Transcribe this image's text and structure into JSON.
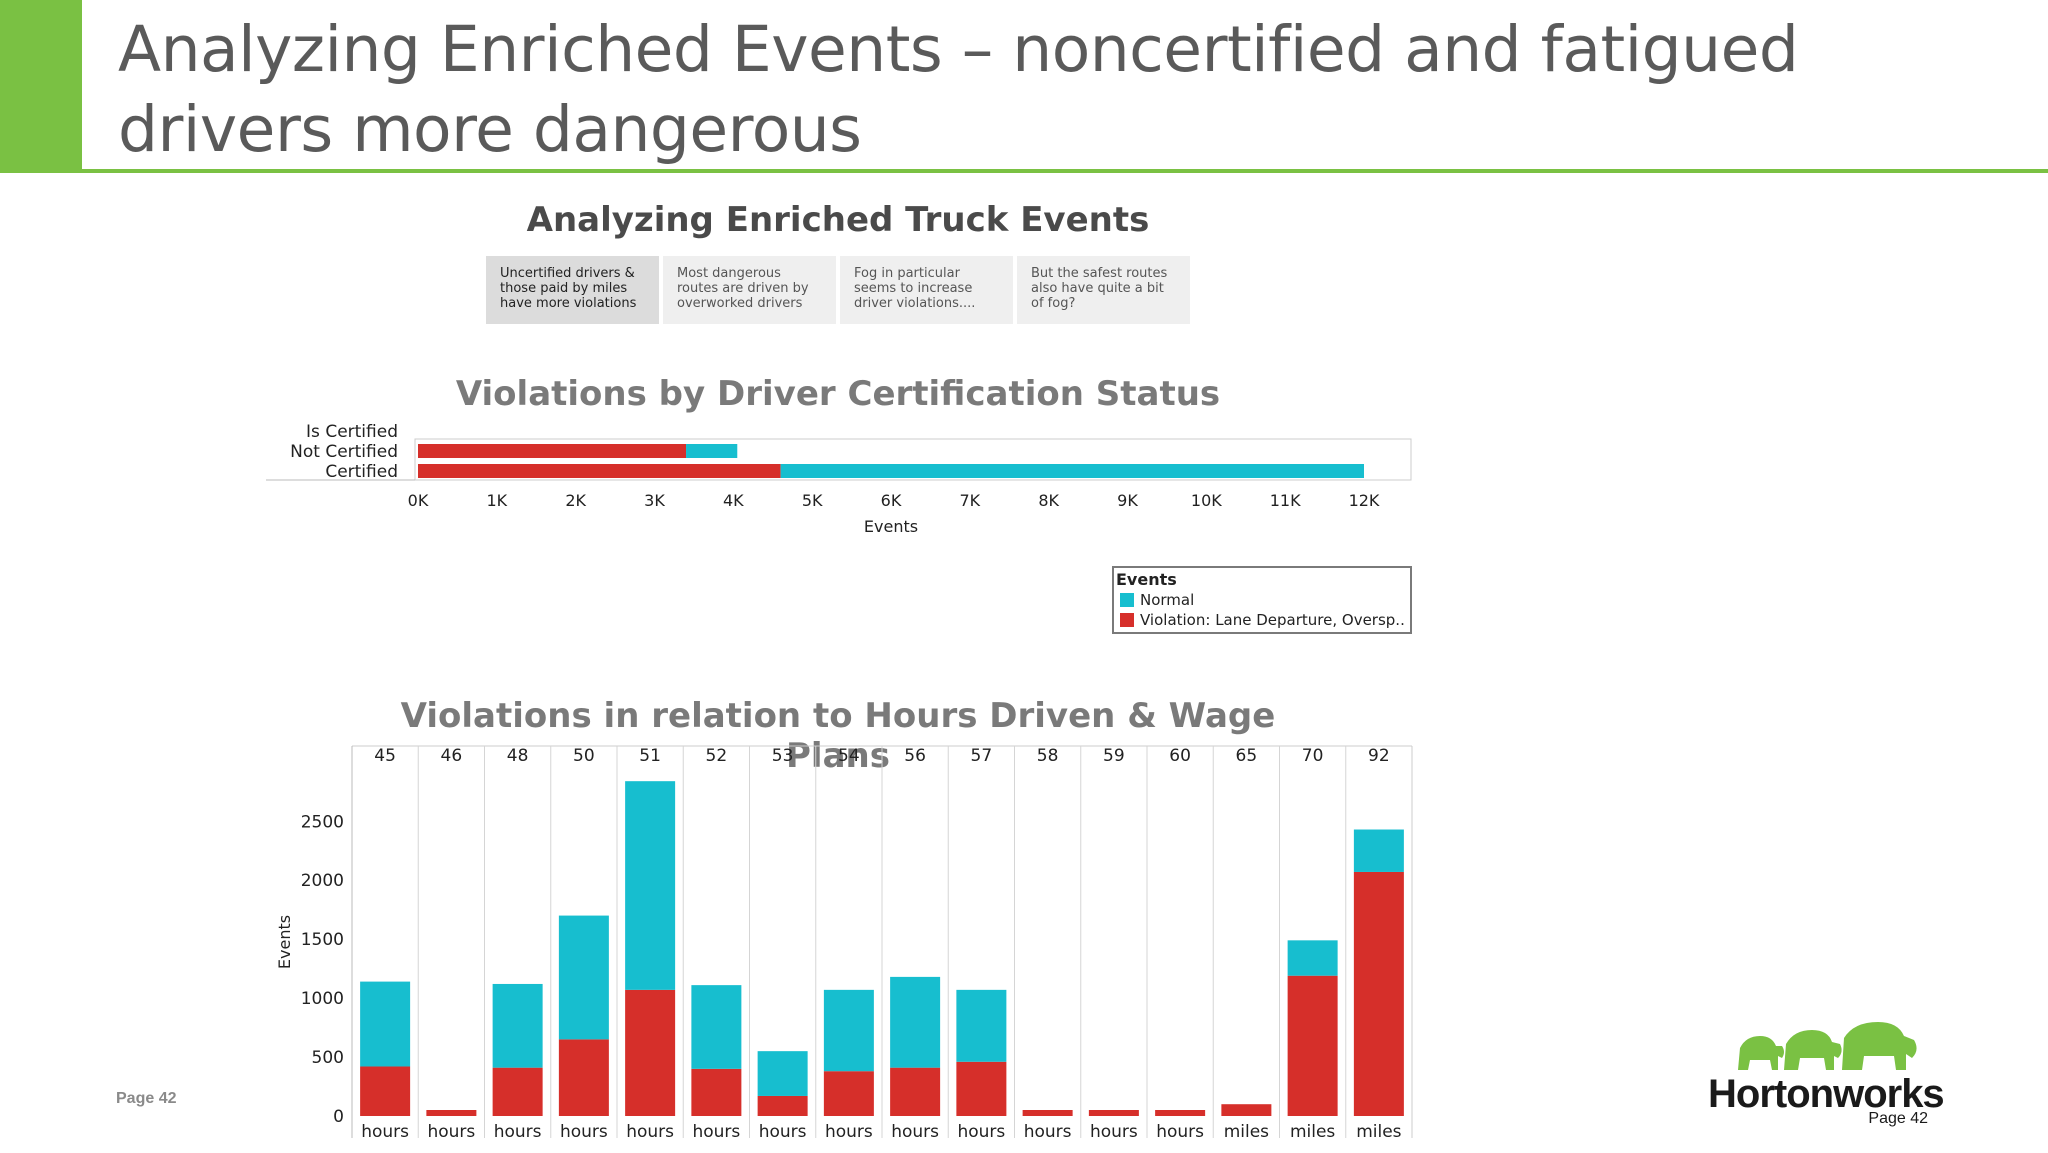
{
  "slide": {
    "title": "Analyzing Enriched Events – noncertified and fatigued drivers more dangerous",
    "page_label": "Page 42"
  },
  "dashboard": {
    "heading": "Analyzing Enriched Truck Events",
    "tabs": [
      {
        "label": "Uncertified drivers & those paid by miles have more violations",
        "active": true
      },
      {
        "label": "Most dangerous routes are driven by overworked drivers",
        "active": false
      },
      {
        "label": "Fog in particular seems to increase driver violations....",
        "active": false
      },
      {
        "label": "But the safest routes also have quite a bit of fog?",
        "active": false
      }
    ]
  },
  "legend": {
    "title": "Events",
    "items": [
      {
        "label": "Normal",
        "color": "#17becf"
      },
      {
        "label": "Violation: Lane Departure, Oversp..",
        "color": "#d62f2a"
      }
    ]
  },
  "logo": {
    "text": "Hortonworks",
    "page_label": "Page 42",
    "color": "#7ac143"
  },
  "chart_data": [
    {
      "type": "bar",
      "orientation": "horizontal",
      "stacked": true,
      "title": "Violations by Driver Certification Status",
      "category_label": "Is Certified",
      "categories": [
        "Not Certified",
        "Certified"
      ],
      "series": [
        {
          "name": "Violation: Lane Departure, Oversp..",
          "color": "#d62f2a",
          "values": [
            3400,
            4600
          ]
        },
        {
          "name": "Normal",
          "color": "#17becf",
          "values": [
            650,
            7400
          ]
        }
      ],
      "xlabel": "Events",
      "xlim": [
        0,
        12000
      ],
      "ticks": [
        "0K",
        "1K",
        "2K",
        "3K",
        "4K",
        "5K",
        "6K",
        "7K",
        "8K",
        "9K",
        "10K",
        "11K",
        "12K"
      ]
    },
    {
      "type": "bar",
      "stacked": true,
      "title": "Violations in relation to Hours Driven & Wage Plans",
      "ylabel": "Events",
      "ylim": [
        0,
        2850
      ],
      "yticks": [
        0,
        500,
        1000,
        1500,
        2000,
        2500
      ],
      "groups": [
        "45",
        "46",
        "48",
        "50",
        "51",
        "52",
        "53",
        "54",
        "56",
        "57",
        "58",
        "59",
        "60",
        "65",
        "70",
        "92"
      ],
      "categories": [
        "hours",
        "hours",
        "hours",
        "hours",
        "hours",
        "hours",
        "hours",
        "hours",
        "hours",
        "hours",
        "hours",
        "hours",
        "hours",
        "miles",
        "miles",
        "miles"
      ],
      "series": [
        {
          "name": "Violation: Lane Departure, Oversp..",
          "color": "#d62f2a",
          "values": [
            420,
            50,
            410,
            650,
            1070,
            400,
            170,
            380,
            410,
            460,
            30,
            50,
            50,
            100,
            1190,
            2070
          ]
        },
        {
          "name": "Normal",
          "color": "#17becf",
          "values": [
            720,
            0,
            710,
            1050,
            1770,
            710,
            380,
            690,
            770,
            610,
            0,
            0,
            0,
            0,
            300,
            360
          ]
        }
      ]
    }
  ]
}
